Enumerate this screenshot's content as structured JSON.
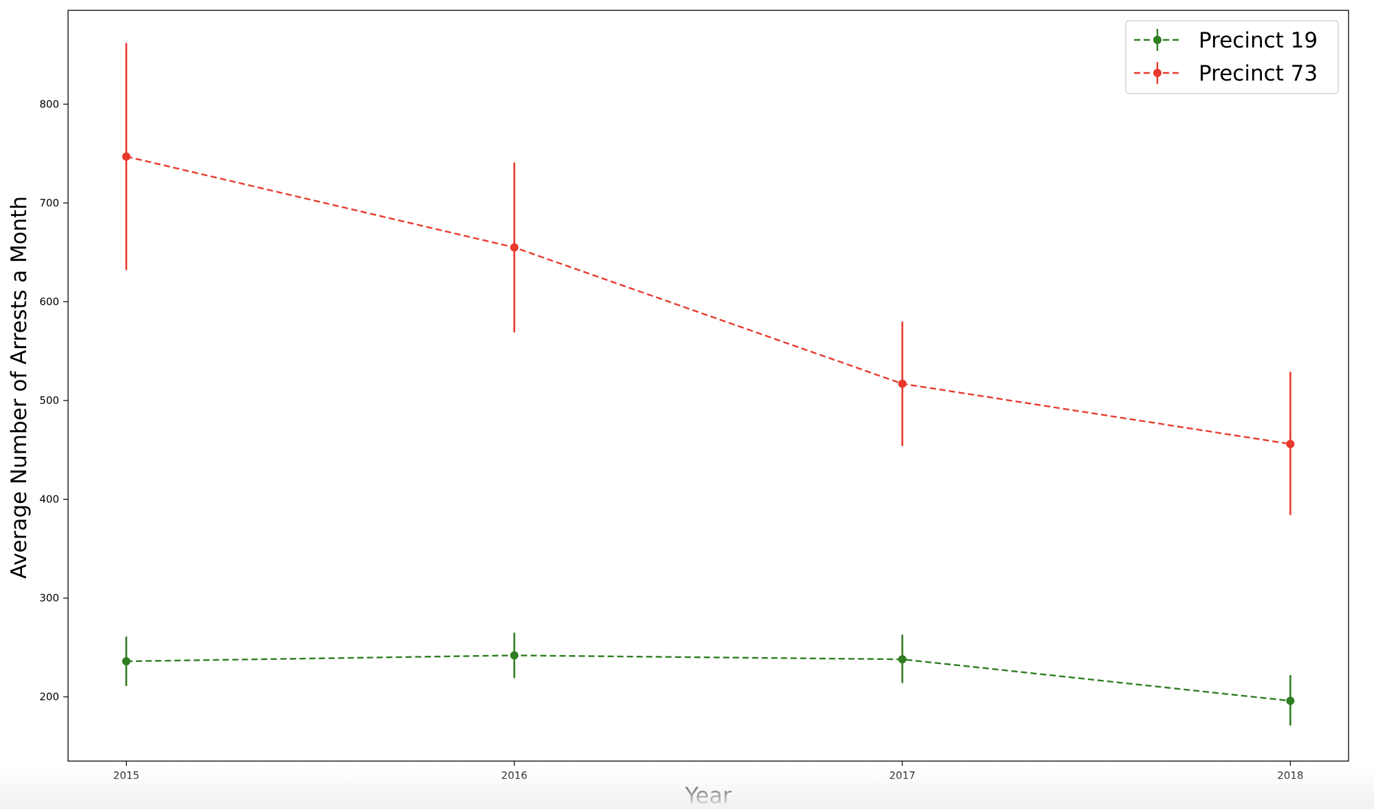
{
  "chart_data": {
    "type": "line",
    "title": "",
    "xlabel": "Year",
    "ylabel": "Average Number of Arrests a Month",
    "x": [
      2015,
      2016,
      2017,
      2018
    ],
    "x_ticks": [
      "2015",
      "2016",
      "2017",
      "2018"
    ],
    "xlim": [
      2014.85,
      2018.15
    ],
    "ylim": [
      135,
      895
    ],
    "y_ticks": [
      200,
      300,
      400,
      500,
      600,
      700,
      800
    ],
    "y_tick_labels": [
      "200",
      "300",
      "400",
      "500",
      "600",
      "700",
      "800"
    ],
    "grid": false,
    "legend_position": "top-right",
    "series": [
      {
        "name": "Precinct 19",
        "color": "#2e7d20",
        "line_style": "dashed",
        "marker": "circle",
        "values": [
          236,
          242,
          238,
          196
        ],
        "error_low": [
          211,
          219,
          214,
          171
        ],
        "error_high": [
          261,
          265,
          263,
          222
        ]
      },
      {
        "name": "Precinct 73",
        "color": "#e8392b",
        "line_style": "dashed",
        "marker": "circle",
        "values": [
          747,
          655,
          517,
          456
        ],
        "error_low": [
          632,
          569,
          454,
          384
        ],
        "error_high": [
          862,
          741,
          580,
          529
        ]
      }
    ]
  }
}
